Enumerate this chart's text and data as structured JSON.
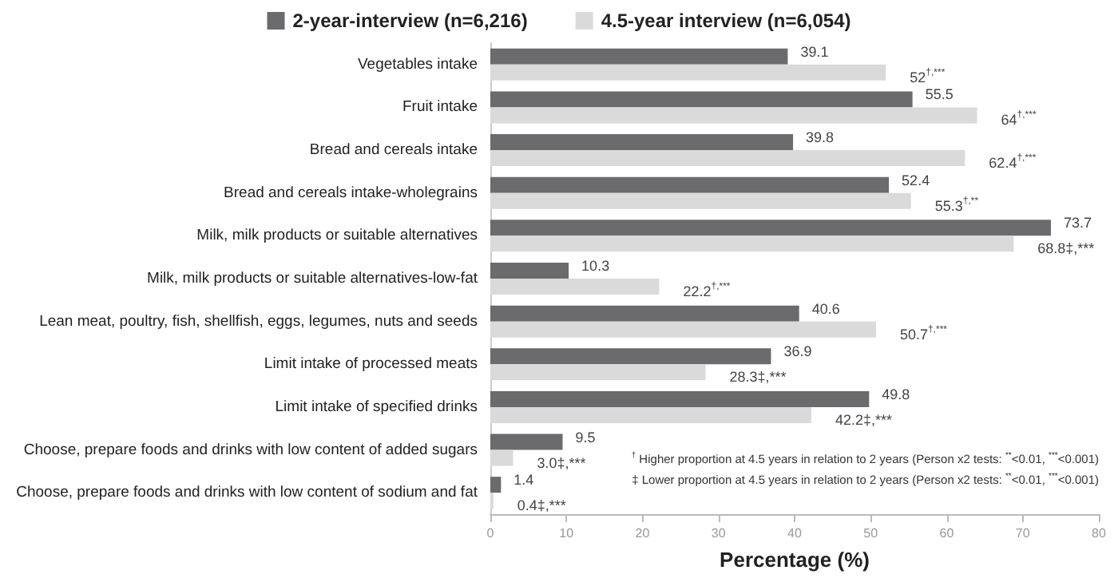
{
  "chart_data": {
    "type": "bar",
    "orientation": "horizontal",
    "xlabel": "Percentage (%)",
    "categories": [
      "Vegetables intake",
      "Fruit intake",
      "Bread and cereals intake",
      "Bread and cereals intake-wholegrains",
      "Milk, milk products or suitable alternatives",
      "Milk, milk products or suitable alternatives-low-fat",
      "Lean meat, poultry, fish, shellfish, eggs, legumes, nuts and seeds",
      "Limit intake of processed meats",
      "Limit intake of specified drinks",
      "Choose, prepare foods and drinks with low content of added sugars",
      "Choose, prepare foods and drinks with low content of sodium and fat"
    ],
    "series": [
      {
        "name": "2-year-interview (n=6,216)",
        "color": "#6b6b6d",
        "values": [
          39.1,
          55.5,
          39.8,
          52.4,
          73.7,
          10.3,
          40.6,
          36.9,
          49.8,
          9.5,
          1.4
        ],
        "value_labels": [
          "39.1",
          "55.5",
          "39.8",
          "52.4",
          "73.7",
          "10.3",
          "40.6",
          "36.9",
          "49.8",
          "9.5",
          "1.4"
        ]
      },
      {
        "name": "4.5-year interview (n=6,054)",
        "color": "#dadada",
        "values": [
          52,
          64,
          62.4,
          55.3,
          68.8,
          22.2,
          50.7,
          28.3,
          42.2,
          3.0,
          0.4
        ],
        "value_labels": [
          "52$^{†,***}$",
          "64$^{†,***}$",
          "62.4$^{†,***}$",
          "55.3$^{†,**}$",
          "68.8‡,***",
          "22.2$^{†,***}$",
          "50.7$^{†,***}$",
          "28.3‡,***",
          "42.2‡,***",
          "3.0‡,***",
          "0.4‡,***"
        ]
      }
    ],
    "xlim": [
      0,
      80
    ],
    "xticks": [
      0,
      10,
      20,
      30,
      40,
      50,
      60,
      70,
      80
    ],
    "grid": false,
    "legend": "top",
    "annotations": [
      "$^{†}$ Higher proportion at 4.5 years in relation to 2 years (Person x2 tests: $^{**}$<0.01, $^{***}$<0.001)",
      "‡ Lower proportion at 4.5 years in relation to 2 years (Person x2 tests: $^{**}$<0.01, $^{***}$<0.001)"
    ]
  }
}
